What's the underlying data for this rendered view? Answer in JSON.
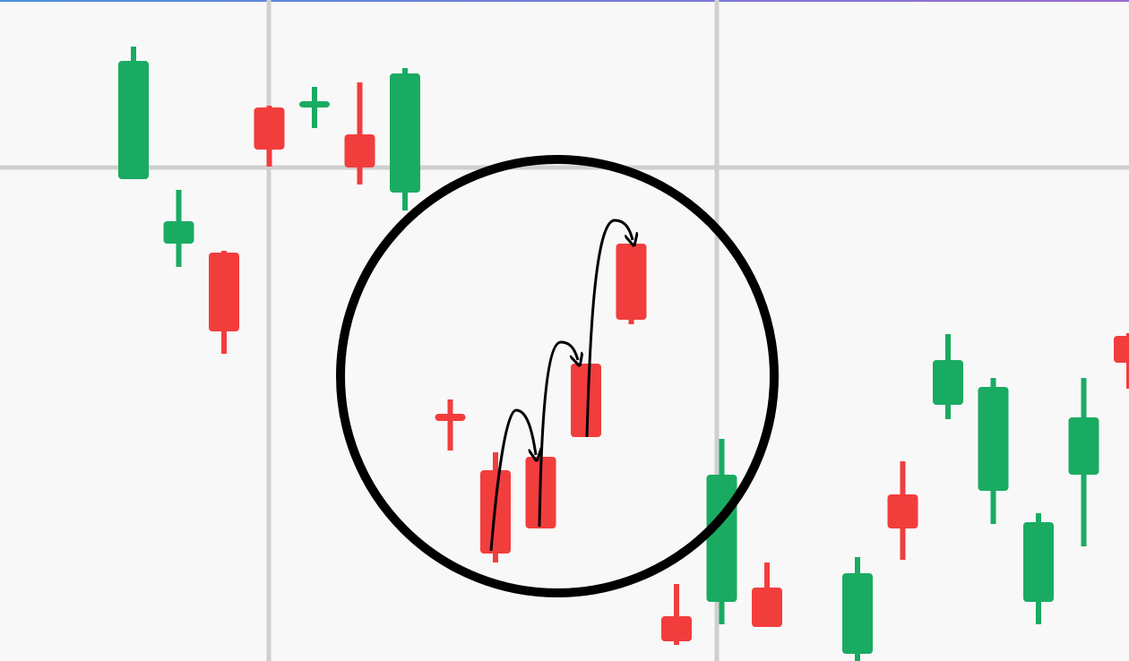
{
  "chart_data": {
    "type": "candlestick",
    "categories": [
      null,
      null,
      null,
      null,
      null,
      null,
      null,
      null,
      null,
      null,
      null,
      null,
      null,
      null,
      null,
      null,
      null,
      null,
      null,
      null,
      null,
      null,
      null
    ],
    "open": [
      538,
      466,
      456,
      618,
      618,
      588,
      523,
      276,
      213,
      228,
      332,
      466,
      50,
      66,
      82,
      null,
      8,
      186,
      286,
      190,
      66,
      208,
      363
    ],
    "high": [
      686,
      526,
      458,
      620,
      641,
      646,
      662,
      292,
      233,
      228,
      332,
      466,
      86,
      248,
      110,
      null,
      116,
      223,
      365,
      316,
      165,
      316,
      366
    ],
    "low": [
      538,
      440,
      343,
      552,
      595,
      532,
      503,
      235,
      110,
      148,
      250,
      376,
      18,
      41,
      38,
      null,
      0,
      113,
      270,
      153,
      41,
      128,
      304
    ],
    "close": [
      670,
      491,
      368,
      571,
      625,
      551,
      656,
      268,
      120,
      148,
      250,
      381,
      22,
      208,
      38,
      null,
      98,
      148,
      336,
      306,
      155,
      272,
      333
    ],
    "up_color": "#1aab62",
    "down_color": "#f23d3d",
    "ylim": [
      0,
      738
    ]
  }
}
